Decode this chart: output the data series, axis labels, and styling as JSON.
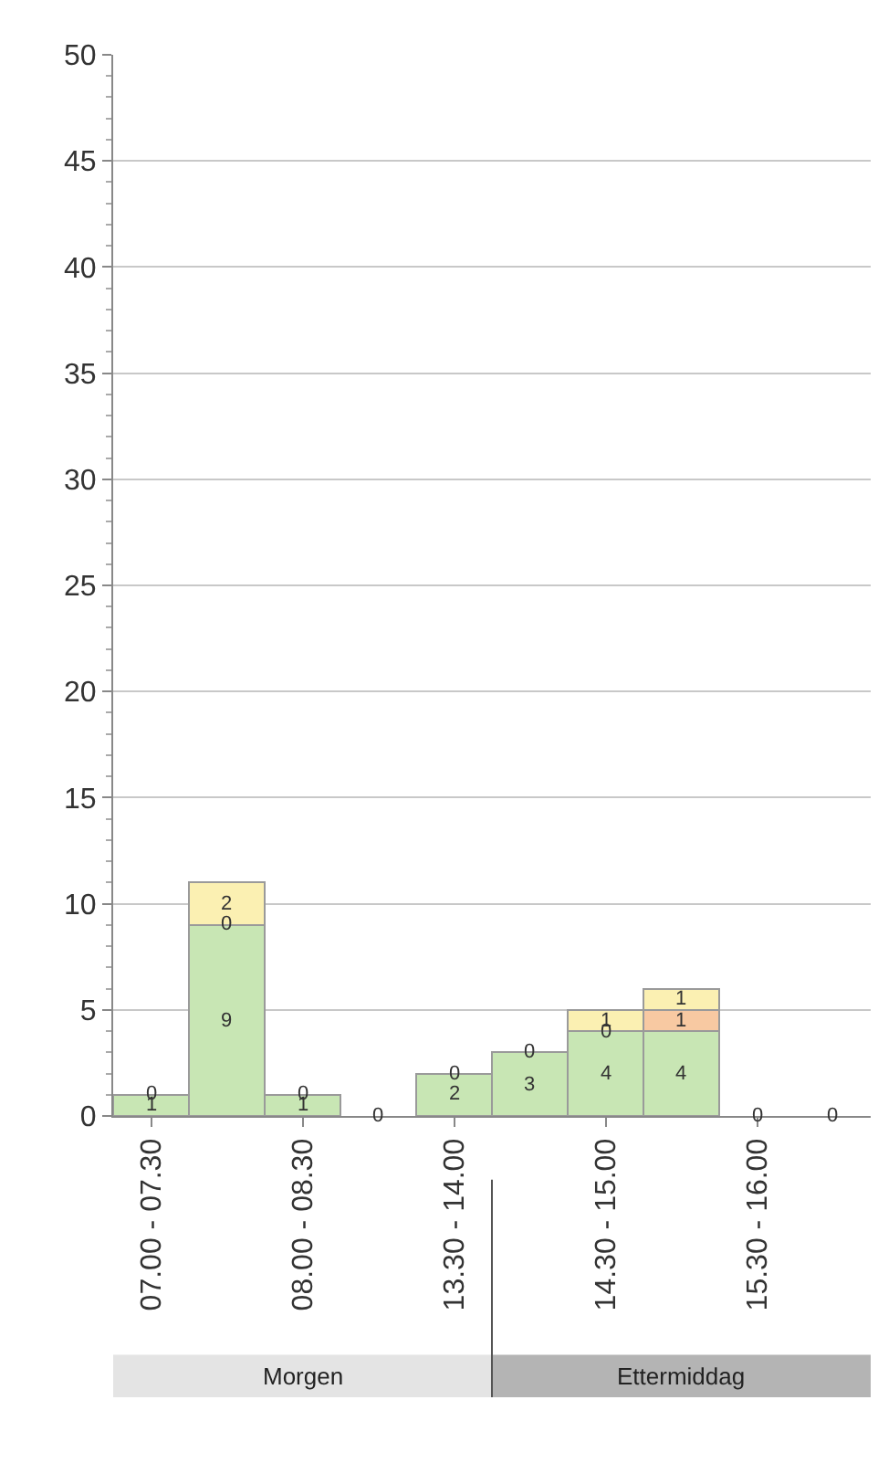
{
  "chart_data": {
    "type": "bar",
    "stacked": true,
    "categories": [
      "07.00 - 07.30",
      null,
      "08.00 - 08.30",
      null,
      "13.30 - 14.00",
      null,
      "14.30 - 15.00",
      null,
      "15.30 - 16.00",
      null
    ],
    "series": [
      {
        "color": "#c8e6b4",
        "values": [
          1,
          9,
          1,
          0,
          2,
          3,
          4,
          4,
          0,
          0
        ],
        "value_labels": [
          "1",
          "9",
          "1",
          "0",
          "2",
          "3",
          "4",
          "4",
          "0",
          "0"
        ]
      },
      {
        "color": "#f8c9a2",
        "values": [
          0,
          0,
          0,
          0,
          0,
          0,
          0,
          1,
          0,
          0
        ],
        "value_labels": [
          "0",
          "0",
          "0",
          null,
          "0",
          "0",
          "0",
          "1",
          null,
          null
        ]
      },
      {
        "color": "#fbf0b2",
        "values": [
          0,
          2,
          0,
          0,
          0,
          0,
          1,
          1,
          0,
          0
        ],
        "value_labels": [
          null,
          "2",
          null,
          null,
          null,
          null,
          "1",
          "1",
          null,
          null
        ]
      }
    ],
    "ylim": [
      0,
      50
    ],
    "yticks": [
      0,
      5,
      10,
      15,
      20,
      25,
      30,
      35,
      40,
      45,
      50
    ],
    "grid": "y",
    "annotations": [
      "Morgen",
      "Ettermiddag"
    ]
  }
}
